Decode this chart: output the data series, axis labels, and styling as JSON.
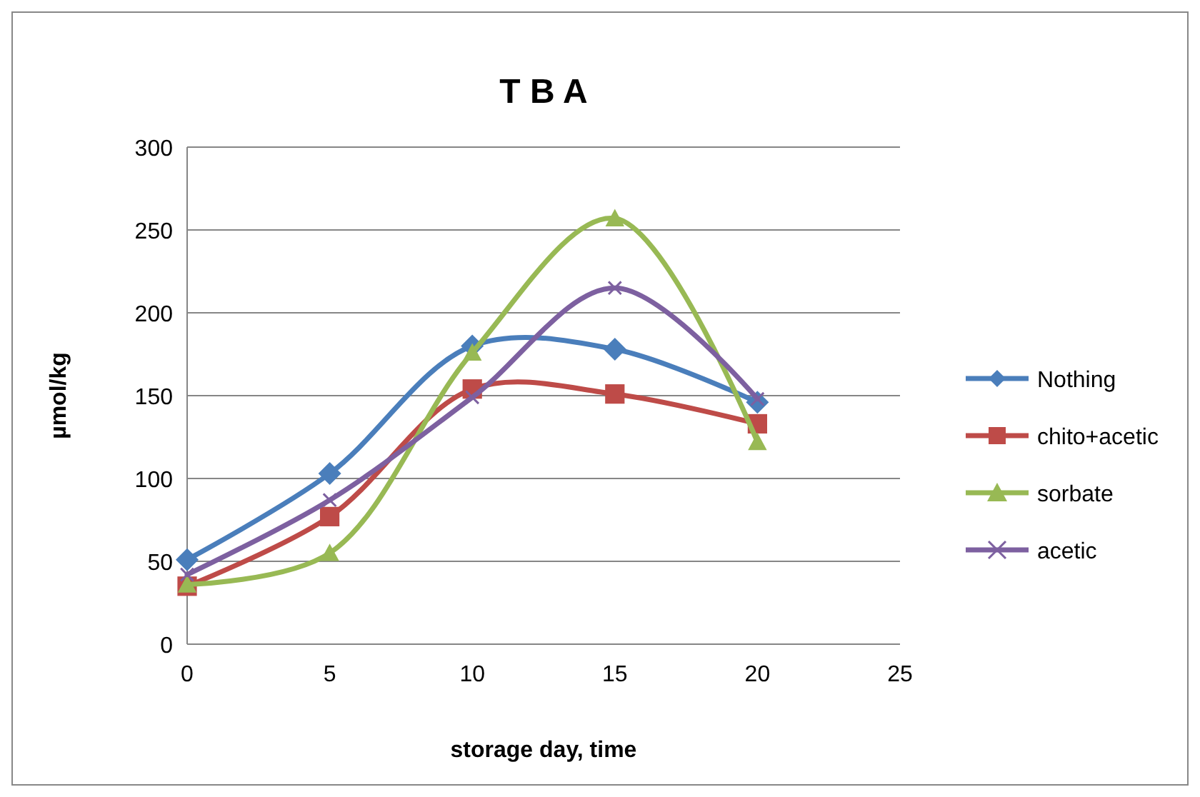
{
  "chart_data": {
    "type": "line",
    "title": "T B A",
    "xlabel": "storage day,  time",
    "ylabel": "µmol/kg",
    "x": [
      0,
      5,
      10,
      15,
      20
    ],
    "xlim": [
      0,
      25
    ],
    "xticks": [
      0,
      5,
      10,
      15,
      20,
      25
    ],
    "ylim": [
      0,
      300
    ],
    "yticks": [
      0,
      50,
      100,
      150,
      200,
      250,
      300
    ],
    "grid": "y",
    "legend": "right",
    "series": [
      {
        "name": "Nothing",
        "color": "#4a7ebb",
        "marker": "diamond",
        "values": [
          51,
          103,
          180,
          178,
          146
        ]
      },
      {
        "name": "chito+acetic",
        "color": "#be4b48",
        "marker": "square",
        "values": [
          35,
          77,
          154,
          151,
          133
        ]
      },
      {
        "name": "sorbate",
        "color": "#98b954",
        "marker": "triangle",
        "values": [
          36,
          55,
          176,
          257,
          122
        ]
      },
      {
        "name": "acetic",
        "color": "#7d60a0",
        "marker": "cross",
        "values": [
          42,
          87,
          149,
          215,
          148
        ]
      }
    ]
  }
}
